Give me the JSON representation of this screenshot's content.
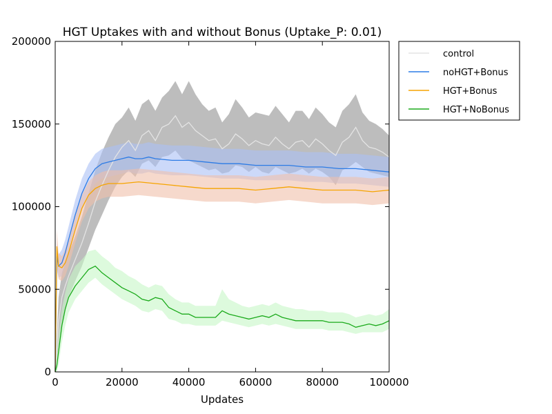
{
  "chart_data": {
    "type": "line",
    "title": "HGT Uptakes with and without Bonus (Uptake_P: 0.01)",
    "xlabel": "Updates",
    "ylabel": "",
    "xlim": [
      0,
      100000
    ],
    "ylim": [
      0,
      200000
    ],
    "xticks": [
      0,
      20000,
      40000,
      60000,
      80000,
      100000
    ],
    "yticks": [
      0,
      50000,
      100000,
      150000,
      200000
    ],
    "xtick_labels": [
      "0",
      "20000",
      "40000",
      "60000",
      "80000",
      "100000"
    ],
    "ytick_labels": [
      "0",
      "50000",
      "100000",
      "150000",
      "200000"
    ],
    "grid": false,
    "legend_position": "outside-top-right",
    "series": [
      {
        "name": "control",
        "color": "#e4e4e4",
        "band_color": "#bdbdbd",
        "x": [
          0,
          1000,
          2000,
          3000,
          4000,
          6000,
          8000,
          10000,
          12000,
          14000,
          16000,
          18000,
          20000,
          22000,
          24000,
          26000,
          28000,
          30000,
          32000,
          34000,
          36000,
          38000,
          40000,
          42000,
          44000,
          46000,
          48000,
          50000,
          52000,
          54000,
          56000,
          58000,
          60000,
          62000,
          64000,
          66000,
          68000,
          70000,
          72000,
          74000,
          76000,
          78000,
          80000,
          82000,
          84000,
          86000,
          88000,
          90000,
          92000,
          94000,
          96000,
          98000,
          100000
        ],
        "y": [
          0,
          30000,
          45000,
          52000,
          58000,
          68000,
          78000,
          90000,
          103000,
          113000,
          122000,
          130000,
          136000,
          140000,
          134000,
          143000,
          146000,
          140000,
          148000,
          150000,
          155000,
          148000,
          151000,
          146000,
          143000,
          140000,
          141000,
          135000,
          138000,
          144000,
          141000,
          137000,
          140000,
          138000,
          137000,
          142000,
          138000,
          135000,
          139000,
          140000,
          136000,
          141000,
          138000,
          134000,
          131000,
          139000,
          142000,
          148000,
          140000,
          136000,
          135000,
          133000,
          130000
        ],
        "lower": [
          0,
          15000,
          28000,
          38000,
          45000,
          55000,
          64000,
          75000,
          86000,
          95000,
          104000,
          112000,
          118000,
          122000,
          118000,
          126000,
          128000,
          124000,
          130000,
          131000,
          134000,
          129000,
          128000,
          126000,
          124000,
          122000,
          123000,
          120000,
          121000,
          125000,
          124000,
          121000,
          124000,
          121000,
          120000,
          124000,
          122000,
          120000,
          121000,
          123000,
          120000,
          123000,
          121000,
          118000,
          113000,
          122000,
          124000,
          127000,
          124000,
          121000,
          120000,
          119000,
          118000
        ],
        "upper": [
          0,
          45000,
          60000,
          66000,
          72000,
          82000,
          94000,
          108000,
          122000,
          133000,
          142000,
          150000,
          154000,
          160000,
          152000,
          162000,
          165000,
          158000,
          166000,
          170000,
          176000,
          168000,
          176000,
          168000,
          162000,
          158000,
          160000,
          151000,
          156000,
          165000,
          160000,
          154000,
          157000,
          156000,
          155000,
          161000,
          156000,
          151000,
          158000,
          158000,
          153000,
          160000,
          156000,
          151000,
          148000,
          158000,
          162000,
          168000,
          157000,
          152000,
          150000,
          147000,
          143000
        ]
      },
      {
        "name": "noHGT+Bonus",
        "color": "#2c7be5",
        "band_color": "#aabff5",
        "x": [
          0,
          500,
          1000,
          2000,
          3000,
          4000,
          6000,
          8000,
          10000,
          12000,
          14000,
          16000,
          18000,
          20000,
          22000,
          24000,
          26000,
          28000,
          30000,
          35000,
          40000,
          45000,
          50000,
          55000,
          60000,
          65000,
          70000,
          75000,
          80000,
          85000,
          90000,
          95000,
          100000
        ],
        "y": [
          0,
          70000,
          64000,
          66000,
          72000,
          80000,
          95000,
          108000,
          117000,
          123000,
          126000,
          127000,
          128000,
          129000,
          130000,
          129000,
          129000,
          130000,
          129000,
          128000,
          128000,
          127000,
          126000,
          126000,
          125000,
          125000,
          125000,
          124000,
          124000,
          123000,
          123000,
          122000,
          121000
        ],
        "lower": [
          0,
          62000,
          57000,
          58000,
          64000,
          72000,
          86000,
          99000,
          108000,
          114000,
          117000,
          118000,
          119000,
          120000,
          121000,
          120000,
          120000,
          121000,
          120000,
          119000,
          119000,
          118000,
          117000,
          117000,
          116000,
          116000,
          116000,
          115000,
          115000,
          114000,
          114000,
          113000,
          112000
        ],
        "upper": [
          0,
          78000,
          71000,
          74000,
          80000,
          88000,
          104000,
          117000,
          126000,
          132000,
          135000,
          136000,
          137000,
          138000,
          139000,
          138000,
          138000,
          139000,
          138000,
          137000,
          137000,
          136000,
          135000,
          135000,
          134000,
          134000,
          134000,
          133000,
          133000,
          132000,
          132000,
          131000,
          130000
        ]
      },
      {
        "name": "HGT+Bonus",
        "color": "#f5a400",
        "band_color": "#f0c0aa",
        "x": [
          0,
          500,
          1000,
          2000,
          3000,
          4000,
          6000,
          8000,
          10000,
          12000,
          14000,
          16000,
          18000,
          20000,
          25000,
          30000,
          35000,
          40000,
          45000,
          50000,
          55000,
          60000,
          65000,
          70000,
          75000,
          80000,
          85000,
          90000,
          95000,
          100000
        ],
        "y": [
          0,
          76000,
          64000,
          63000,
          66000,
          72000,
          86000,
          99000,
          107000,
          111000,
          113000,
          114000,
          114000,
          114000,
          115000,
          114000,
          113000,
          112000,
          111000,
          111000,
          111000,
          110000,
          111000,
          112000,
          111000,
          110000,
          110000,
          110000,
          109000,
          110000
        ],
        "lower": [
          0,
          68000,
          56000,
          55000,
          58000,
          64000,
          78000,
          91000,
          99000,
          103000,
          105000,
          106000,
          106000,
          106000,
          107000,
          106000,
          105000,
          104000,
          103000,
          103000,
          103000,
          102000,
          103000,
          104000,
          103000,
          102000,
          102000,
          102000,
          101000,
          102000
        ],
        "upper": [
          0,
          86000,
          72000,
          70000,
          74000,
          80000,
          94000,
          107000,
          115000,
          119000,
          121000,
          122000,
          122000,
          122000,
          123000,
          122000,
          121000,
          120000,
          119000,
          119000,
          119000,
          118000,
          119000,
          120000,
          119000,
          118000,
          118000,
          118000,
          117000,
          118000
        ]
      },
      {
        "name": "HGT+NoBonus",
        "color": "#1aaa1a",
        "band_color": "#c6f7c6",
        "x": [
          0,
          500,
          1000,
          2000,
          3000,
          4000,
          6000,
          8000,
          10000,
          12000,
          14000,
          16000,
          18000,
          20000,
          22000,
          24000,
          26000,
          28000,
          30000,
          32000,
          34000,
          36000,
          38000,
          40000,
          42000,
          44000,
          46000,
          48000,
          50000,
          52000,
          54000,
          56000,
          58000,
          60000,
          62000,
          64000,
          66000,
          68000,
          70000,
          72000,
          74000,
          76000,
          78000,
          80000,
          82000,
          84000,
          86000,
          88000,
          90000,
          92000,
          94000,
          96000,
          98000,
          100000
        ],
        "y": [
          0,
          4000,
          12000,
          28000,
          38000,
          45000,
          52000,
          57000,
          62000,
          64000,
          60000,
          57000,
          54000,
          51000,
          49000,
          47000,
          44000,
          43000,
          45000,
          44000,
          39000,
          37000,
          35000,
          35000,
          33000,
          33000,
          33000,
          33000,
          37000,
          35000,
          34000,
          33000,
          32000,
          33000,
          34000,
          33000,
          35000,
          33000,
          32000,
          31000,
          31000,
          31000,
          31000,
          31000,
          30000,
          30000,
          30000,
          29000,
          27000,
          28000,
          29000,
          28000,
          29000,
          31000
        ],
        "lower": [
          0,
          0,
          4000,
          18000,
          28000,
          36000,
          44000,
          49000,
          54000,
          57000,
          53000,
          50000,
          47000,
          44000,
          42000,
          40000,
          37000,
          36000,
          38000,
          37000,
          32000,
          31000,
          29000,
          29000,
          28000,
          28000,
          28000,
          28000,
          31000,
          30000,
          29000,
          28000,
          27000,
          28000,
          29000,
          28000,
          29000,
          28000,
          27000,
          26000,
          26000,
          26000,
          26000,
          26000,
          25000,
          25000,
          25000,
          24000,
          23000,
          24000,
          24000,
          24000,
          24000,
          26000
        ],
        "upper": [
          0,
          12000,
          22000,
          38000,
          48000,
          56000,
          64000,
          68000,
          73000,
          74000,
          70000,
          67000,
          63000,
          61000,
          58000,
          56000,
          53000,
          51000,
          53000,
          52000,
          47000,
          44000,
          42000,
          42000,
          40000,
          40000,
          40000,
          40000,
          50000,
          44000,
          42000,
          40000,
          39000,
          40000,
          41000,
          40000,
          42000,
          40000,
          39000,
          38000,
          38000,
          37000,
          37000,
          37000,
          36000,
          36000,
          36000,
          35000,
          33000,
          34000,
          35000,
          34000,
          35000,
          38000
        ]
      }
    ]
  }
}
